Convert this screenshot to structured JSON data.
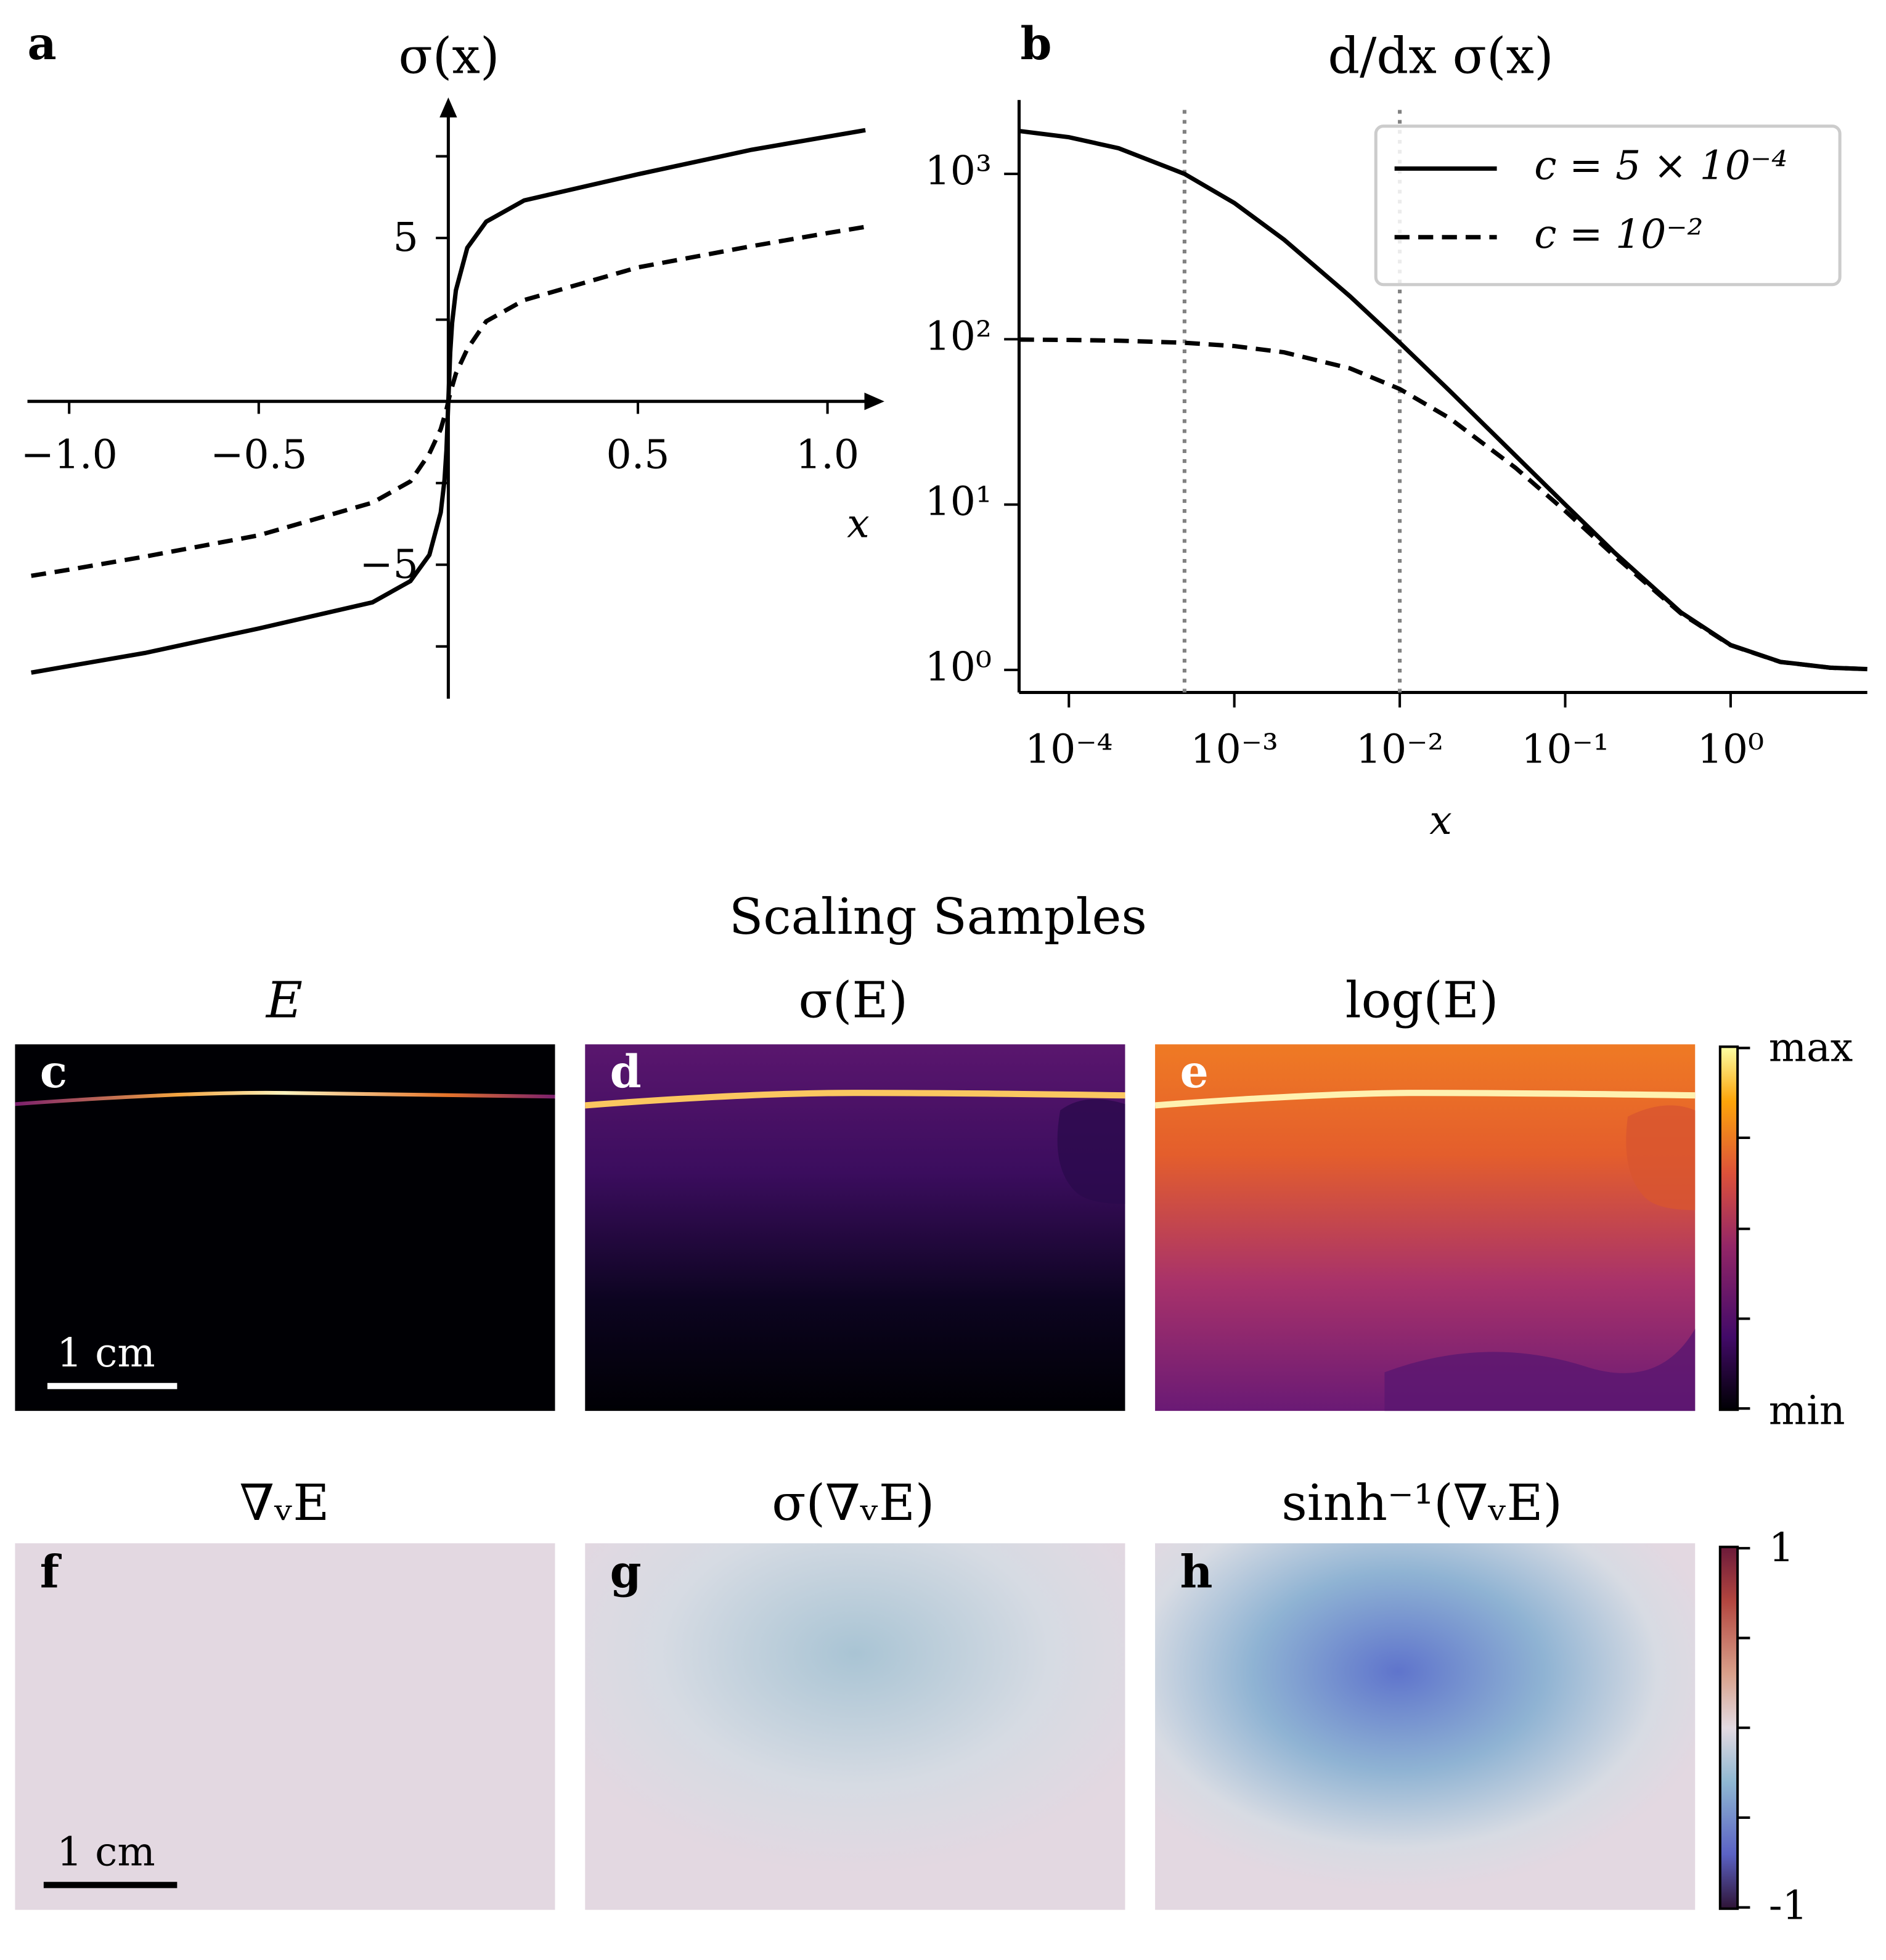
{
  "chart_data": [
    {
      "type": "line",
      "label": "a",
      "title": "σ(x)",
      "x_label": "x",
      "x": [
        -1.1,
        -1,
        -0.8,
        -0.5,
        -0.2,
        -0.1,
        -0.05,
        -0.02,
        -0.01,
        -0.005,
        0,
        0.005,
        0.01,
        0.02,
        0.05,
        0.1,
        0.2,
        0.5,
        0.8,
        1,
        1.1
      ],
      "series": [
        {
          "color": "#000000",
          "dash": "solid",
          "values": [
            -8.3,
            -8.1,
            -7.7,
            -6.95,
            -6.15,
            -5.5,
            -4.7,
            -3.4,
            -2.4,
            -1.5,
            0,
            1.5,
            2.4,
            3.4,
            4.7,
            5.5,
            6.15,
            6.95,
            7.7,
            8.1,
            8.3
          ]
        },
        {
          "color": "#000000",
          "dash": "dashed",
          "values": [
            -5.34,
            -5.15,
            -4.75,
            -4.1,
            -3.1,
            -2.45,
            -1.6,
            -0.85,
            -0.45,
            -0.25,
            0,
            0.25,
            0.45,
            0.85,
            1.6,
            2.45,
            3.1,
            4.1,
            4.75,
            5.15,
            5.34
          ]
        }
      ],
      "xlim": [
        -1.11,
        1.15
      ],
      "ylim": [
        -9.1,
        9.3
      ],
      "xticks": [
        {
          "value": -1,
          "label": "−1.0"
        },
        {
          "value": -0.5,
          "label": "−0.5"
        },
        0.5,
        {
          "value": 1,
          "label": "1.0"
        }
      ],
      "yticks": [
        {
          "value": -5,
          "label": "−5"
        },
        5
      ],
      "yminor": [
        -7.5,
        -2.5,
        2.5,
        7.5
      ]
    },
    {
      "type": "line",
      "label": "b",
      "title": "d/dx σ(x)",
      "x_label": "x",
      "xscale": "log",
      "yscale": "log",
      "x": [
        5e-05,
        0.0001,
        0.0002,
        0.0005,
        0.001,
        0.002,
        0.005,
        0.01,
        0.02,
        0.05,
        0.1,
        0.2,
        0.5,
        1,
        2,
        4,
        6.7
      ],
      "series": [
        {
          "name": "c = 5 × 10⁻⁴",
          "color": "#000000",
          "dash": "solid",
          "values": [
            1818,
            1667,
            1429,
            1000,
            667,
            400,
            182,
            95.2,
            48.8,
            19.8,
            10.0,
            5.09,
            2.23,
            1.414,
            1.118,
            1.031,
            1.011
          ]
        },
        {
          "name": "c = 10⁻²",
          "color": "#000000",
          "dash": "dashed",
          "values": [
            99.5,
            99.0,
            98.0,
            95.2,
            90.9,
            83.3,
            66.7,
            50.0,
            33.3,
            16.7,
            9.15,
            4.86,
            2.2,
            1.41,
            1.117,
            1.031,
            1.011
          ]
        }
      ],
      "vlines": [
        0.0005,
        0.01
      ],
      "vline_color": "#808080",
      "xlim": [
        5e-05,
        6.7
      ],
      "ylim": [
        0.73,
        2800
      ],
      "xticks": [
        {
          "value": 0.0001,
          "label": "10⁻⁴"
        },
        {
          "value": 0.001,
          "label": "10⁻³"
        },
        {
          "value": 0.01,
          "label": "10⁻²"
        },
        {
          "value": 0.1,
          "label": "10⁻¹"
        },
        {
          "value": 1,
          "label": "10⁰"
        }
      ],
      "yticks": [
        {
          "value": 1,
          "label": "10⁰"
        },
        {
          "value": 10,
          "label": "10¹"
        },
        {
          "value": 100,
          "label": "10²"
        },
        {
          "value": 1000,
          "label": "10³"
        }
      ],
      "legend": "upper right"
    }
  ],
  "figure": {
    "title": "Scaling Samples",
    "panels": [
      {
        "label": "c",
        "title": "E"
      },
      {
        "label": "d",
        "title": "σ(E)"
      },
      {
        "label": "e",
        "title": "log(E)"
      },
      {
        "label": "f",
        "title": "∇ᵥE"
      },
      {
        "label": "g",
        "title": "σ(∇ᵥE)"
      },
      {
        "label": "h",
        "title": "sinh⁻¹(∇ᵥE)"
      }
    ],
    "colorbars": [
      {
        "top": "max",
        "bottom": "min"
      },
      {
        "top": "1",
        "bottom": "-1"
      }
    ],
    "scale_bars": [
      "1 cm",
      "1 cm"
    ]
  }
}
